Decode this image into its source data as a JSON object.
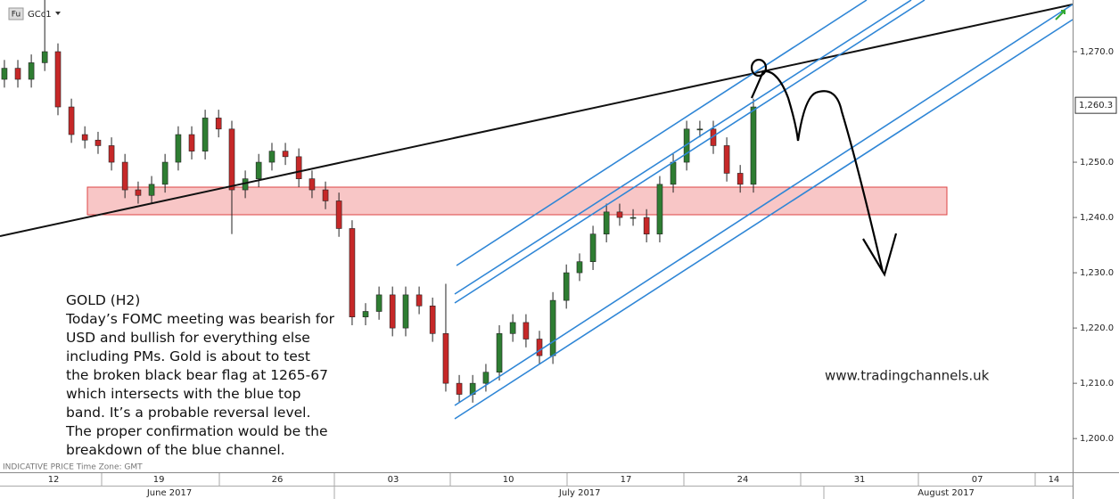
{
  "chart_data": {
    "type": "candlestick",
    "symbol_badge": "Fu",
    "symbol": "GCc1",
    "annotation_title": "GOLD (H2)",
    "annotation_lines": [
      "Today’s FOMC meeting was bearish for",
      "USD and bullish for everything else",
      "including PMs. Gold is about to test",
      "the broken black bear flag at 1265-67",
      "which intersects with the blue top",
      "band. It’s a probable reversal level.",
      "The proper confirmation would be the",
      "breakdown of the blue channel."
    ],
    "watermark": "www.tradingchannels.uk",
    "footer": "INDICATIVE PRICE   Time Zone: GMT",
    "up_color": "#2e7d32",
    "down_color": "#c62828",
    "x": [
      -2.12,
      -1.54,
      -0.96,
      -0.38,
      0.19,
      0.77,
      1.35,
      1.92,
      2.5,
      3.08,
      3.65,
      4.23,
      4.81,
      5.38,
      5.96,
      6.54,
      7.12,
      7.69,
      8.27,
      8.85,
      9.42,
      10,
      10.58,
      11.15,
      11.73,
      12.31,
      12.88,
      13.46,
      14.04,
      14.62,
      15.19,
      15.77,
      16.35,
      16.92,
      17.5,
      18.08,
      18.65,
      19.23,
      19.81,
      20.38,
      20.96,
      21.54,
      22.12,
      22.69,
      23.27,
      23.85,
      24.42,
      25,
      25.58,
      26.15,
      26.73,
      27.31,
      27.88,
      28.46,
      29.04,
      29.62,
      30.19
    ],
    "open": [
      1265,
      1267,
      1265,
      1268,
      1270,
      1260,
      1255,
      1254,
      1253,
      1250,
      1245,
      1244,
      1246,
      1250,
      1255,
      1252,
      1258,
      1256,
      1245,
      1247,
      1250,
      1252,
      1251,
      1247,
      1245,
      1243,
      1238,
      1222,
      1223,
      1226,
      1220,
      1226,
      1224,
      1219,
      1210,
      1208,
      1210,
      1212,
      1219,
      1221,
      1218,
      1215,
      1225,
      1230,
      1232,
      1237,
      1241,
      1240,
      1240,
      1237,
      1246,
      1250,
      1256,
      1256,
      1253,
      1248,
      1246
    ],
    "high": [
      1268.5,
      1268.5,
      1269.5,
      1280,
      1271.5,
      1261.5,
      1256.5,
      1255.5,
      1254.5,
      1251.5,
      1246.5,
      1247.5,
      1251.5,
      1256.5,
      1256.5,
      1259.5,
      1259.5,
      1257.5,
      1248.5,
      1251.5,
      1253.5,
      1253.5,
      1252.5,
      1248.5,
      1246.5,
      1244.5,
      1239.5,
      1224.5,
      1227.5,
      1227.5,
      1227.5,
      1227.5,
      1225.5,
      1228,
      1211.5,
      1211.5,
      1213.5,
      1220.5,
      1222.5,
      1222.5,
      1219.5,
      1226.5,
      1231.5,
      1233.5,
      1238.5,
      1242.5,
      1242.5,
      1241.5,
      1241.5,
      1247.5,
      1251.5,
      1257.5,
      1257.5,
      1257.5,
      1254.5,
      1249.5,
      1261.5
    ],
    "low": [
      1263.5,
      1263.5,
      1263.5,
      1266.5,
      1258.5,
      1253.5,
      1252.5,
      1251.5,
      1248.5,
      1243.5,
      1242.5,
      1242.5,
      1244.5,
      1248.5,
      1250.5,
      1250.5,
      1254.5,
      1237,
      1243.5,
      1245.5,
      1248.5,
      1249.5,
      1245.5,
      1243.5,
      1241.5,
      1236.5,
      1220.5,
      1220.5,
      1221.5,
      1218.5,
      1218.5,
      1222.5,
      1217.5,
      1208.5,
      1206.5,
      1206.5,
      1208.5,
      1210.5,
      1217.5,
      1216.5,
      1213.5,
      1213.5,
      1223.5,
      1228.5,
      1230.5,
      1235.5,
      1238.5,
      1238.5,
      1235.5,
      1235.5,
      1244.5,
      1248.5,
      1254.5,
      1251.5,
      1246.5,
      1244.5,
      1244.5
    ],
    "close": [
      1267,
      1265,
      1268,
      1270,
      1260,
      1255,
      1254,
      1253,
      1250,
      1245,
      1244,
      1246,
      1250,
      1255,
      1252,
      1258,
      1256,
      1245,
      1247,
      1250,
      1252,
      1251,
      1247,
      1245,
      1243,
      1238,
      1222,
      1223,
      1226,
      1220,
      1226,
      1224,
      1219,
      1210,
      1208,
      1210,
      1212,
      1219,
      1221,
      1218,
      1215,
      1225,
      1230,
      1232,
      1237,
      1241,
      1240,
      1240,
      1237,
      1246,
      1250,
      1256,
      1256,
      1253,
      1248,
      1246,
      1260
    ],
    "last_price": {
      "value": 1260.3,
      "label": "1,260.3"
    },
    "xlim": [
      -2.31,
      43.96
    ],
    "xticks": [
      {
        "value": 0,
        "label": "12"
      },
      {
        "value": 4.54,
        "label": "19"
      },
      {
        "value": 9.65,
        "label": "26"
      },
      {
        "value": 14.65,
        "label": "03"
      },
      {
        "value": 19.62,
        "label": "10"
      },
      {
        "value": 24.69,
        "label": "17"
      },
      {
        "value": 29.73,
        "label": "24"
      },
      {
        "value": 34.77,
        "label": "31"
      },
      {
        "value": 39.85,
        "label": "07"
      },
      {
        "value": 43.15,
        "label": "14"
      }
    ],
    "month_ticks": [
      {
        "value": 5.0,
        "label": "June 2017"
      },
      {
        "value": 22.7,
        "label": "July 2017"
      },
      {
        "value": 38.5,
        "label": "August 2017"
      }
    ],
    "ylim": [
      1193.9,
      1279.35
    ],
    "yticks": [
      {
        "value": 1200,
        "label": "1,200.0"
      },
      {
        "value": 1210,
        "label": "1,210.0"
      },
      {
        "value": 1220,
        "label": "1,220.0"
      },
      {
        "value": 1230,
        "label": "1,230.0"
      },
      {
        "value": 1240,
        "label": "1,240.0"
      },
      {
        "value": 1250,
        "label": "1,250.0"
      },
      {
        "value": 1270,
        "label": "1,270.0"
      }
    ]
  }
}
